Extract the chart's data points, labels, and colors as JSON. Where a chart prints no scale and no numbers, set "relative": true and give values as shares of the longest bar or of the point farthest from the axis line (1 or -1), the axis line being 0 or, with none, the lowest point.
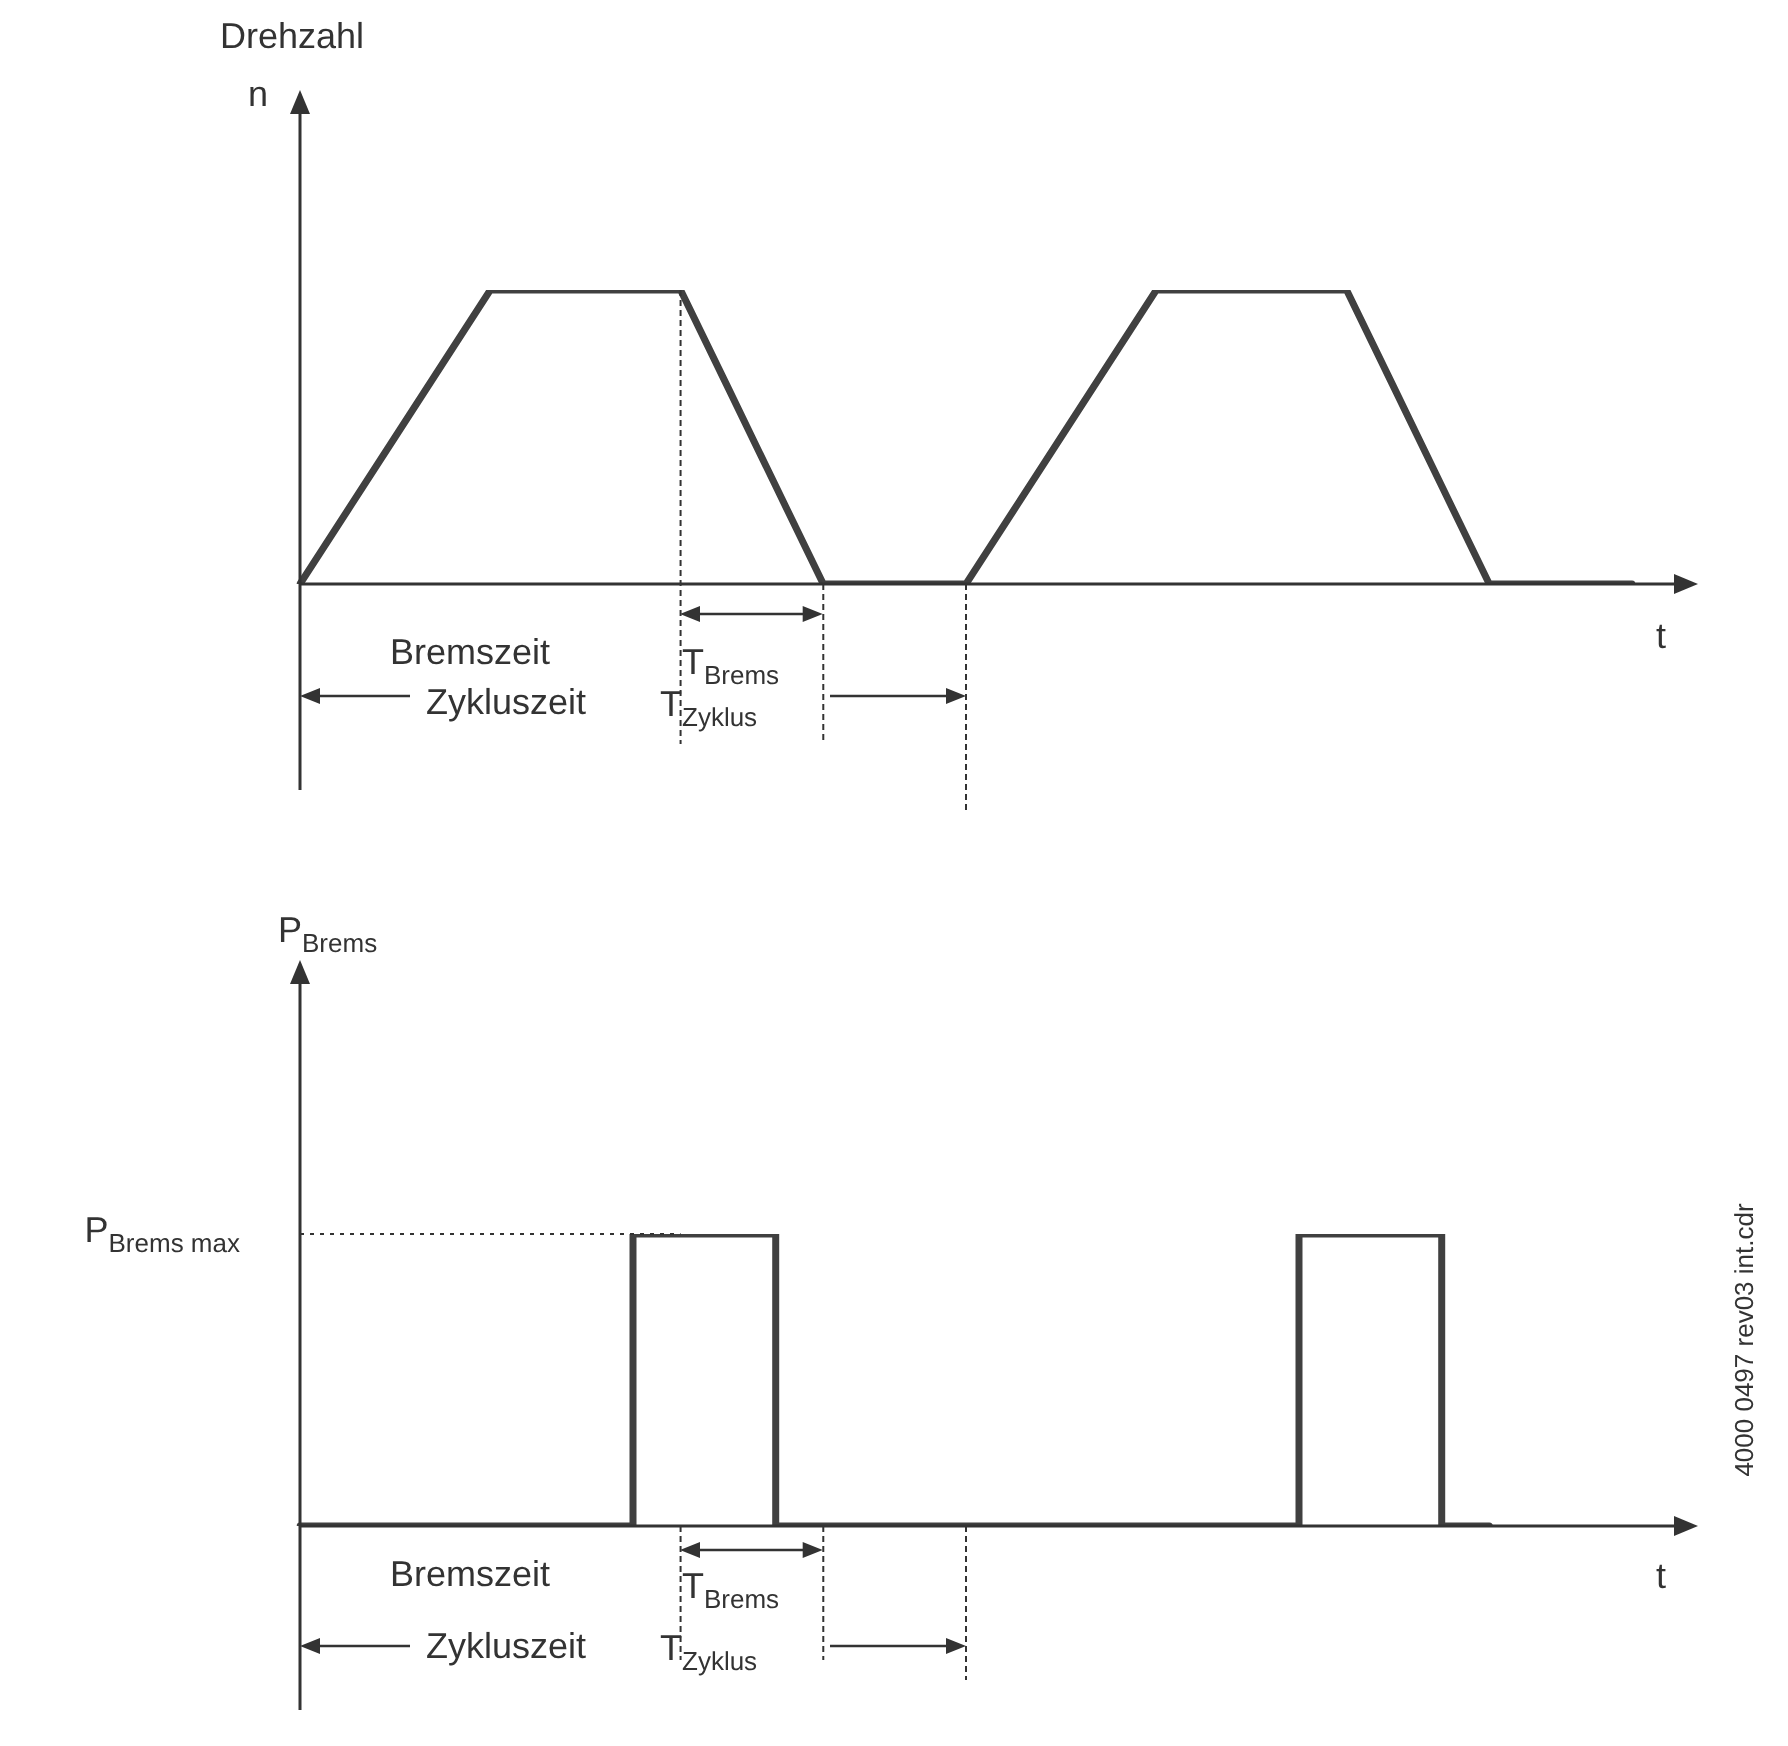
{
  "chart_data": [
    {
      "type": "line",
      "relative": true,
      "title": "Drehzahl",
      "ylabel": "n",
      "xlabel": "t",
      "color": "#404040",
      "categories": [
        null,
        null,
        null,
        null,
        null,
        null,
        null,
        null,
        null,
        null,
        null,
        null,
        null,
        null,
        null,
        null,
        null,
        null,
        null,
        null,
        null,
        null,
        null,
        null,
        null,
        null,
        null,
        null,
        null
      ],
      "values": [
        0,
        0.25,
        0.5,
        0.75,
        1,
        1,
        1,
        1,
        1,
        0.667,
        0.333,
        0,
        0,
        0,
        0,
        0.25,
        0.5,
        0.75,
        1,
        1,
        1,
        1,
        1,
        0.667,
        0.333,
        0,
        0,
        0,
        0
      ],
      "annotations": [
        "Bremszeit",
        "T$_{Brems}$",
        "Zykluszeit",
        "T$_{Zyklus}$"
      ]
    },
    {
      "type": "step",
      "relative": true,
      "ylabel": "P$_{Brems}$",
      "xlabel": "t",
      "color": "#404040",
      "categories": [
        null,
        null,
        null,
        null,
        null,
        null,
        null,
        null,
        null,
        null,
        null,
        null,
        null,
        null,
        null,
        null,
        null,
        null,
        null,
        null,
        null,
        null,
        null,
        null,
        null,
        null,
        null,
        null,
        null
      ],
      "values": [
        0,
        0,
        0,
        0,
        0,
        0,
        0,
        0,
        1,
        1,
        1,
        0,
        0,
        0,
        0,
        0,
        0,
        0,
        0,
        0,
        0,
        0,
        1,
        1,
        1,
        0,
        null,
        null,
        null
      ],
      "ref_lines": [
        {
          "axis": "y",
          "value": 1,
          "label": "P$_{Brems max}$",
          "line_style": "dotted"
        }
      ],
      "annotations": [
        "Bremszeit",
        "T$_{Brems}$",
        "Zykluszeit",
        "T$_{Zyklus}$",
        "4000 0497 rev03 int.cdr"
      ]
    }
  ]
}
